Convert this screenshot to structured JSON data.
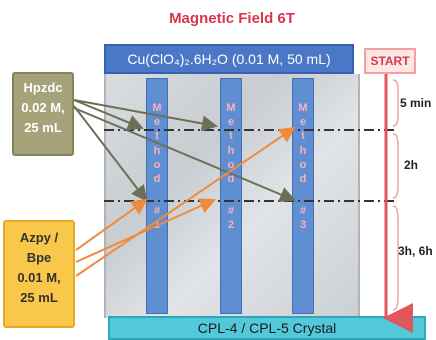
{
  "title": "Magnetic Field 6T",
  "top_reagent": "Cu(ClO₄)₂.6H₂O (0.01 M, 50 mL)",
  "start_label": "START",
  "bottom_label": "CPL-4 / CPL-5 Crystal",
  "left_reagents": [
    {
      "lines": [
        "Hpzdc",
        "0.02 M,",
        "25 mL"
      ]
    },
    {
      "lines": [
        "Azpy /",
        "Bpe",
        "0.01 M,",
        "25 mL"
      ]
    }
  ],
  "columns": [
    {
      "letters": [
        "M",
        "e",
        "t",
        "h",
        "o",
        "d",
        "#",
        "1"
      ]
    },
    {
      "letters": [
        "M",
        "e",
        "t",
        "h",
        "o",
        "d",
        "#",
        "2"
      ]
    },
    {
      "letters": [
        "M",
        "e",
        "t",
        "h",
        "o",
        "d",
        "#",
        "3"
      ]
    }
  ],
  "time_labels": [
    "5 min",
    "2h",
    "3h, 6h"
  ],
  "colors": {
    "title": "#d7374b",
    "top_bar": "#4a78c6",
    "column": "#5f8fd2",
    "bottom_bar": "#53c8d9",
    "hpzdc_box": "#a6a37b",
    "azpy_box": "#f9c84b",
    "timeline_arrow": "#e0565b",
    "hpzdc_arrows": "#6e6e57",
    "azpy_arrows": "#f08a3c"
  }
}
